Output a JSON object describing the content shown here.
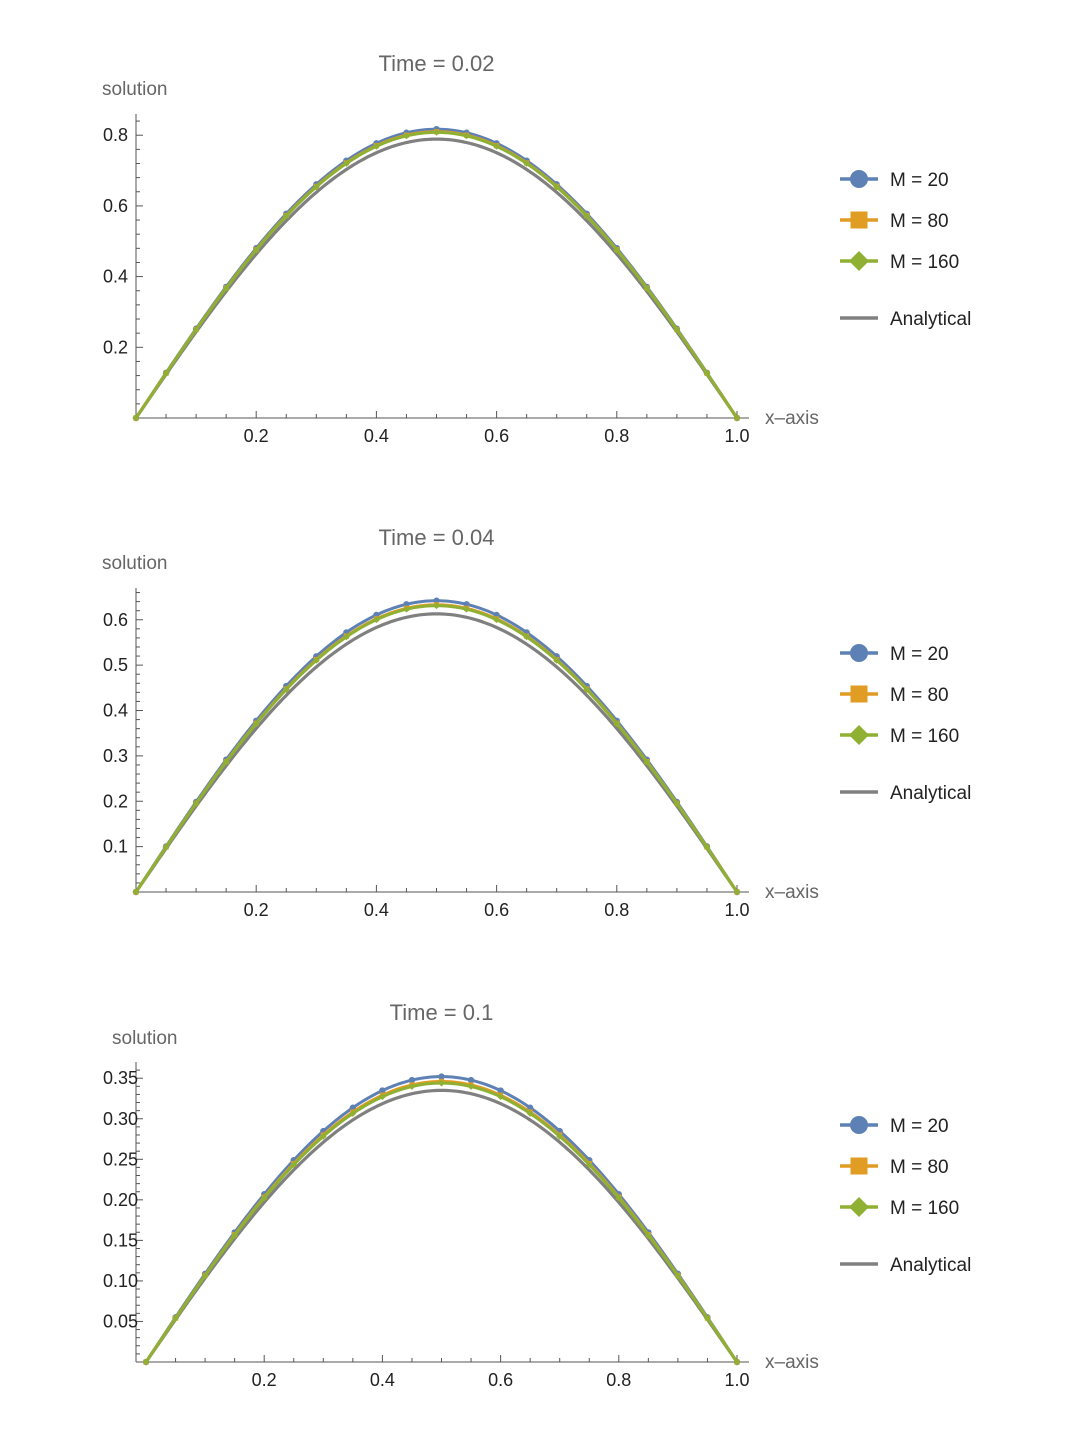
{
  "legend": {
    "position": "right",
    "entries": [
      {
        "label": "M = 20",
        "color": "#5E81B5",
        "marker": "circle"
      },
      {
        "label": "M = 80",
        "color": "#E19C24",
        "marker": "square"
      },
      {
        "label": "M = 160",
        "color": "#8FB032",
        "marker": "diamond"
      },
      {
        "label": "Analytical",
        "color": "#808080",
        "marker": "none"
      }
    ]
  },
  "chart_data": [
    {
      "type": "line",
      "title": "Time = 0.02",
      "xlabel": "x–axis",
      "ylabel": "solution",
      "xlim": [
        0,
        1
      ],
      "ylim": [
        0,
        0.86
      ],
      "xticks": [
        0.2,
        0.4,
        0.6,
        0.8,
        1.0
      ],
      "xtick_labels": [
        "0.2",
        "0.4",
        "0.6",
        "0.8",
        "1.0"
      ],
      "yticks": [
        0.2,
        0.4,
        0.6,
        0.8
      ],
      "ytick_labels": [
        "0.2",
        "0.4",
        "0.6",
        "0.8"
      ],
      "grid": false,
      "series": [
        {
          "name": "M = 20",
          "peak": 0.817
        },
        {
          "name": "M = 80",
          "peak": 0.81
        },
        {
          "name": "M = 160",
          "peak": 0.808
        },
        {
          "name": "Analytical",
          "peak": 0.789
        }
      ]
    },
    {
      "type": "line",
      "title": "Time = 0.04",
      "xlabel": "x–axis",
      "ylabel": "solution",
      "xlim": [
        0,
        1
      ],
      "ylim": [
        0,
        0.67
      ],
      "xticks": [
        0.2,
        0.4,
        0.6,
        0.8,
        1.0
      ],
      "xtick_labels": [
        "0.2",
        "0.4",
        "0.6",
        "0.8",
        "1.0"
      ],
      "yticks": [
        0.1,
        0.2,
        0.3,
        0.4,
        0.5,
        0.6
      ],
      "ytick_labels": [
        "0.1",
        "0.2",
        "0.3",
        "0.4",
        "0.5",
        "0.6"
      ],
      "grid": false,
      "series": [
        {
          "name": "M = 20",
          "peak": 0.642
        },
        {
          "name": "M = 80",
          "peak": 0.633
        },
        {
          "name": "M = 160",
          "peak": 0.631
        },
        {
          "name": "Analytical",
          "peak": 0.613
        }
      ]
    },
    {
      "type": "line",
      "title": "Time = 0.1",
      "xlabel": "x–axis",
      "ylabel": "solution",
      "xlim": [
        0,
        1
      ],
      "ylim": [
        0,
        0.37
      ],
      "xticks": [
        0.2,
        0.4,
        0.6,
        0.8,
        1.0
      ],
      "xtick_labels": [
        "0.2",
        "0.4",
        "0.6",
        "0.8",
        "1.0"
      ],
      "yticks": [
        0.05,
        0.1,
        0.15,
        0.2,
        0.25,
        0.3,
        0.35
      ],
      "ytick_labels": [
        "0.05",
        "0.10",
        "0.15",
        "0.20",
        "0.25",
        "0.30",
        "0.35"
      ],
      "grid": false,
      "series": [
        {
          "name": "M = 20",
          "peak": 0.352
        },
        {
          "name": "M = 80",
          "peak": 0.346
        },
        {
          "name": "M = 160",
          "peak": 0.344
        },
        {
          "name": "Analytical",
          "peak": 0.335
        }
      ]
    }
  ]
}
